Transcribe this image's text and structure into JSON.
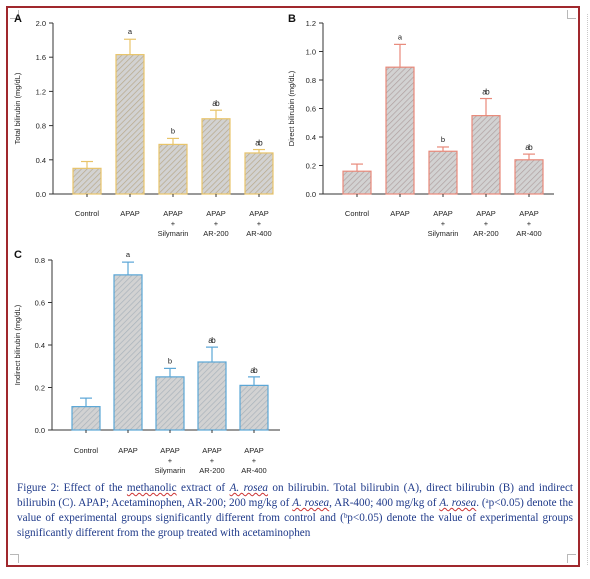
{
  "caption": {
    "p1": "Figure 2: Effect of the",
    "p2": "methanolic",
    "p3": "extract of",
    "p4": "A. rosea",
    "p5": "on bilirubin.  Total bilirubin (A), direct bilirubin (B) and indirect bilirubin (C). APAP; Acetaminophen, AR-200; 200 mg/kg of",
    "p6": "A. rosea",
    "p7": ", AR-400; 400 mg/kg of",
    "p8": "A. rosea",
    "p9": ". (ᵃp<0.05) denote the value of experimental groups significantly different from control and (ᵇp<0.05) denote the value of experimental groups significantly different from the group treated with acetaminophen"
  },
  "chart_data": [
    {
      "type": "bar",
      "panel": "A",
      "ylabel": "Total bilirubin (mg/dL)",
      "ylim": [
        0,
        2.0
      ],
      "yticks": [
        "0.0",
        "0.4",
        "0.8",
        "1.2",
        "1.6",
        "2.0"
      ],
      "ytick_values": [
        0,
        0.4,
        0.8,
        1.2,
        1.6,
        2.0
      ],
      "categories": [
        [
          "Control"
        ],
        [
          "APAP"
        ],
        [
          "APAP",
          "+",
          "Silymarin"
        ],
        [
          "APAP",
          "+",
          "AR-200"
        ],
        [
          "APAP",
          "+",
          "AR-400"
        ]
      ],
      "values": [
        0.3,
        1.63,
        0.58,
        0.88,
        0.48
      ],
      "errors": [
        0.08,
        0.18,
        0.07,
        0.1,
        0.04
      ],
      "annotations": [
        "",
        "a",
        "b",
        "ab",
        "ab"
      ],
      "bar_color": "#e8c46a",
      "grid": false
    },
    {
      "type": "bar",
      "panel": "B",
      "ylabel": "Direct bilirubin (mg/dL)",
      "ylim": [
        0,
        1.2
      ],
      "yticks": [
        "0.0",
        "0.2",
        "0.4",
        "0.6",
        "0.8",
        "1.0",
        "1.2"
      ],
      "ytick_values": [
        0,
        0.2,
        0.4,
        0.6,
        0.8,
        1.0,
        1.2
      ],
      "categories": [
        [
          "Control"
        ],
        [
          "APAP"
        ],
        [
          "APAP",
          "+",
          "Silymarin"
        ],
        [
          "APAP",
          "+",
          "AR-200"
        ],
        [
          "APAP",
          "+",
          "AR-400"
        ]
      ],
      "values": [
        0.16,
        0.89,
        0.3,
        0.55,
        0.24
      ],
      "errors": [
        0.05,
        0.16,
        0.03,
        0.12,
        0.04
      ],
      "annotations": [
        "",
        "a",
        "b",
        "ab",
        "ab"
      ],
      "bar_color": "#e8897a",
      "grid": false
    },
    {
      "type": "bar",
      "panel": "C",
      "ylabel": "Indirect bilirubin (mg/dL)",
      "ylim": [
        0,
        0.8
      ],
      "yticks": [
        "0.0",
        "0.2",
        "0.4",
        "0.6",
        "0.8"
      ],
      "ytick_values": [
        0,
        0.2,
        0.4,
        0.6,
        0.8
      ],
      "categories": [
        [
          "Control"
        ],
        [
          "APAP"
        ],
        [
          "APAP",
          "+",
          "Silymarin"
        ],
        [
          "APAP",
          "+",
          "AR-200"
        ],
        [
          "APAP",
          "+",
          "AR-400"
        ]
      ],
      "values": [
        0.11,
        0.73,
        0.25,
        0.32,
        0.21
      ],
      "errors": [
        0.04,
        0.06,
        0.04,
        0.07,
        0.04
      ],
      "annotations": [
        "",
        "a",
        "b",
        "ab",
        "ab"
      ],
      "bar_color": "#5aa6d6",
      "grid": false
    }
  ]
}
